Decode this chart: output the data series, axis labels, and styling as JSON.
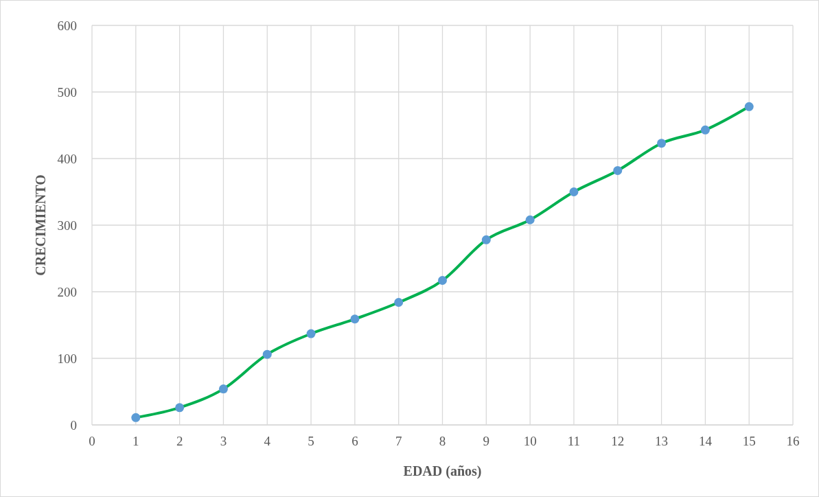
{
  "chart_data": {
    "type": "line",
    "xlabel": "EDAD (años)",
    "ylabel": "CRECIMIENTO",
    "x": [
      1,
      2,
      3,
      4,
      5,
      6,
      7,
      8,
      9,
      10,
      11,
      12,
      13,
      14,
      15
    ],
    "series": [
      {
        "color": "#00b050",
        "values": [
          11,
          26,
          54,
          106,
          137,
          159,
          184,
          217,
          278,
          308,
          350,
          382,
          423,
          443,
          478
        ]
      }
    ],
    "xlim": [
      0,
      16
    ],
    "xticks": [
      0,
      1,
      2,
      3,
      4,
      5,
      6,
      7,
      8,
      9,
      10,
      11,
      12,
      13,
      14,
      15,
      16
    ],
    "ylim": [
      0,
      600
    ],
    "yticks": [
      0,
      100,
      200,
      300,
      400,
      500,
      600
    ],
    "grid": true,
    "marker": "circle",
    "line_style": "solid"
  }
}
